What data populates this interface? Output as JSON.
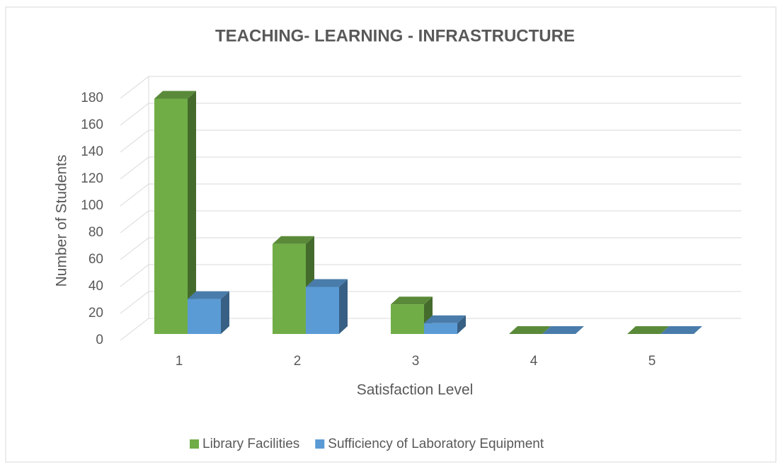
{
  "chart_data": {
    "type": "bar3d",
    "title": "TEACHING- LEARNING - INFRASTRUCTURE",
    "x_label": "Satisfaction Level",
    "y_label": "Number of Students",
    "categories": [
      "1",
      "2",
      "3",
      "4",
      "5"
    ],
    "series": [
      {
        "name": "Library Facilities",
        "color": "#70ad47",
        "values": [
          175,
          67,
          22,
          0,
          0
        ]
      },
      {
        "name": "Sufficiency of Laboratory Equipment",
        "color": "#5b9bd5",
        "values": [
          26,
          35,
          8,
          0,
          0
        ]
      }
    ],
    "ylim": [
      0,
      180
    ],
    "yticks": [
      0,
      20,
      40,
      60,
      80,
      100,
      120,
      140,
      160,
      180
    ],
    "grid": true,
    "legend": "bottom"
  }
}
